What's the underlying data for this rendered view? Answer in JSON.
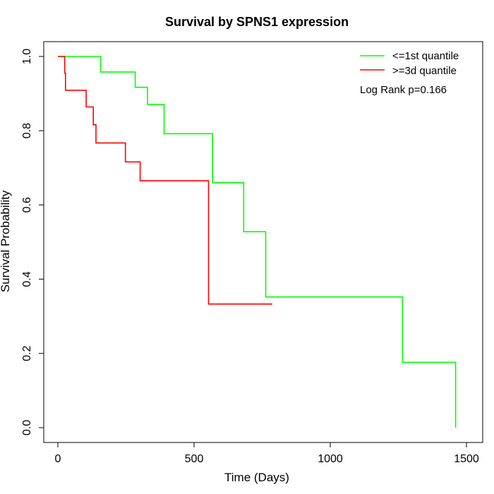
{
  "chart_data": {
    "type": "line",
    "subtype": "kaplan-meier step",
    "title": "Survival by SPNS1 expression",
    "xlabel": "Time (Days)",
    "ylabel": "Survival Probability",
    "xlim": [
      0,
      1500
    ],
    "ylim": [
      0,
      1
    ],
    "xticks": [
      "0",
      "500",
      "1000",
      "1500"
    ],
    "yticks": [
      "0.0",
      "0.2",
      "0.4",
      "0.6",
      "0.8",
      "1.0"
    ],
    "xtick_values": [
      0,
      500,
      1000,
      1500
    ],
    "ytick_values": [
      0.0,
      0.2,
      0.4,
      0.6,
      0.8,
      1.0
    ],
    "grid": false,
    "legend_position": "top-right",
    "annotation": "Log Rank p=0.166",
    "series": [
      {
        "name": "<=1st quantile",
        "color": "#00ff00",
        "x": [
          0,
          157,
          157,
          284,
          284,
          329,
          329,
          390,
          390,
          568,
          568,
          682,
          682,
          763,
          763,
          1265,
          1265,
          1460,
          1460
        ],
        "y": [
          1.0,
          1.0,
          0.958,
          0.958,
          0.917,
          0.917,
          0.871,
          0.871,
          0.792,
          0.792,
          0.66,
          0.66,
          0.528,
          0.528,
          0.352,
          0.352,
          0.176,
          0.176,
          0.0
        ]
      },
      {
        "name": ">=3d quantile",
        "color": "#ff0000",
        "x": [
          0,
          25,
          25,
          28,
          28,
          104,
          104,
          130,
          130,
          140,
          140,
          248,
          248,
          302,
          302,
          553,
          553,
          787
        ],
        "y": [
          1.0,
          1.0,
          0.955,
          0.955,
          0.909,
          0.909,
          0.864,
          0.864,
          0.816,
          0.816,
          0.767,
          0.767,
          0.716,
          0.716,
          0.665,
          0.665,
          0.333,
          0.333
        ]
      }
    ]
  }
}
